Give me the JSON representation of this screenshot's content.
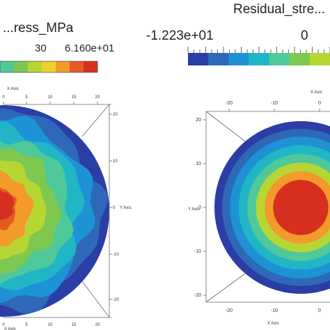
{
  "colors": {
    "band_palette": [
      "#2b3ea6",
      "#2e69b9",
      "#1d93d6",
      "#21b6c6",
      "#4fc89a",
      "#7ec850",
      "#b6d634",
      "#efd228",
      "#f29a2a",
      "#e35a22",
      "#d62f20"
    ],
    "frame": "#666666"
  },
  "chart_data": [
    {
      "type": "heatmap",
      "title": "",
      "legend_title": "...ress_MPa",
      "legend_ticks": [
        "30",
        "6.160e+01"
      ],
      "x_axis_title": "X Axis",
      "y_axis_title": "Y Axis",
      "x_ticks": [
        "0",
        "5",
        "10",
        "15",
        "20"
      ],
      "y_ticks": [
        "20",
        "10",
        "0",
        "-10",
        "-20"
      ],
      "value_max": 61.6,
      "description_of_field": "stress field on a circular cross-section, highest values (red) toward the left-center, decreasing outward to blue at the rim",
      "band_radii_fraction": [
        1.0,
        0.93,
        0.86,
        0.78,
        0.69,
        0.58,
        0.46,
        0.35,
        0.22
      ]
    },
    {
      "type": "heatmap",
      "title": "",
      "legend_title": "Residual_stre...",
      "legend_ticks": [
        "-1.223e+01",
        "0"
      ],
      "x_axis_title": "X Axis",
      "y_axis_title": "Y Axis",
      "x_ticks": [
        "-20",
        "-10",
        "0"
      ],
      "y_ticks": [
        "20",
        "10",
        "0",
        "-10",
        "-20"
      ],
      "value_min": -12.23,
      "description_of_field": "axisymmetric residual stress: concentric rings, red core, blue outer rim",
      "band_radii_fraction": [
        1.0,
        0.91,
        0.82,
        0.72,
        0.62,
        0.52,
        0.42,
        0.32
      ]
    }
  ]
}
